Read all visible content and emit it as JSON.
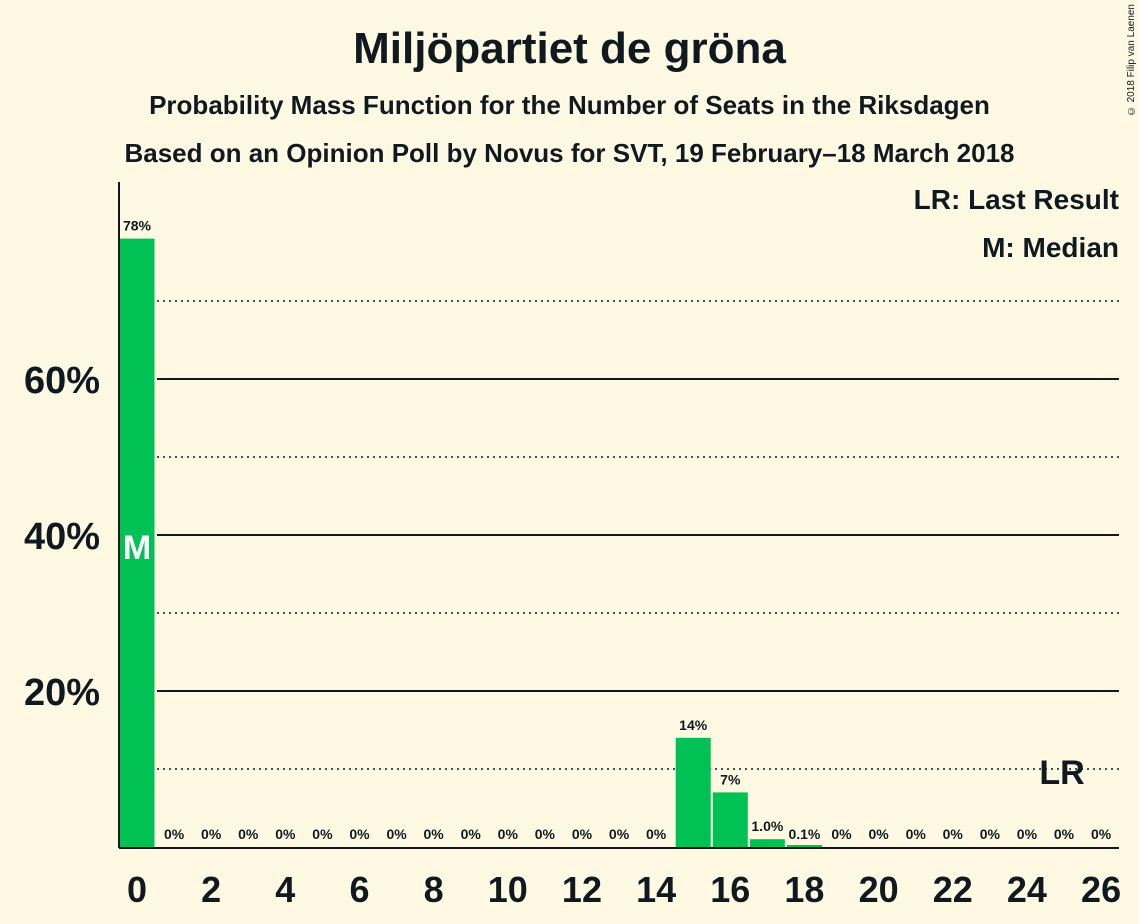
{
  "title": "Miljöpartiet de gröna",
  "subtitle": "Probability Mass Function for the Number of Seats in the Riksdagen",
  "subtitle2": "Based on an Opinion Poll by Novus for SVT, 19 February–18 March 2018",
  "copyright": "© 2018 Filip van Laenen",
  "legend": {
    "last_result": "LR: Last Result",
    "median": "M: Median"
  },
  "colors": {
    "bar": "#00c153",
    "background": "#fff9e3",
    "text": "#0f1a20"
  },
  "chart_data": {
    "type": "bar",
    "title": "Miljöpartiet de gröna",
    "x": [
      0,
      1,
      2,
      3,
      4,
      5,
      6,
      7,
      8,
      9,
      10,
      11,
      12,
      13,
      14,
      15,
      16,
      17,
      18,
      19,
      20,
      21,
      22,
      23,
      24,
      25,
      26
    ],
    "values": [
      78,
      0,
      0,
      0,
      0,
      0,
      0,
      0,
      0,
      0,
      0,
      0,
      0,
      0,
      0,
      14,
      7,
      1.0,
      0.1,
      0,
      0,
      0,
      0,
      0,
      0,
      0,
      0
    ],
    "labels": [
      "78%",
      "0%",
      "0%",
      "0%",
      "0%",
      "0%",
      "0%",
      "0%",
      "0%",
      "0%",
      "0%",
      "0%",
      "0%",
      "0%",
      "0%",
      "14%",
      "7%",
      "1.0%",
      "0.1%",
      "0%",
      "0%",
      "0%",
      "0%",
      "0%",
      "0%",
      "0%",
      "0%"
    ],
    "xticks": [
      0,
      2,
      4,
      6,
      8,
      10,
      12,
      14,
      16,
      18,
      20,
      22,
      24,
      26
    ],
    "yticks": [
      20,
      40,
      60
    ],
    "ytick_labels": [
      "20%",
      "40%",
      "60%"
    ],
    "ylim": [
      0,
      85
    ],
    "minor_gridlines": [
      10,
      30,
      50,
      70
    ],
    "median_seat": 0,
    "median_marker": "M",
    "last_result_seat": 25,
    "last_result_marker": "LR"
  }
}
